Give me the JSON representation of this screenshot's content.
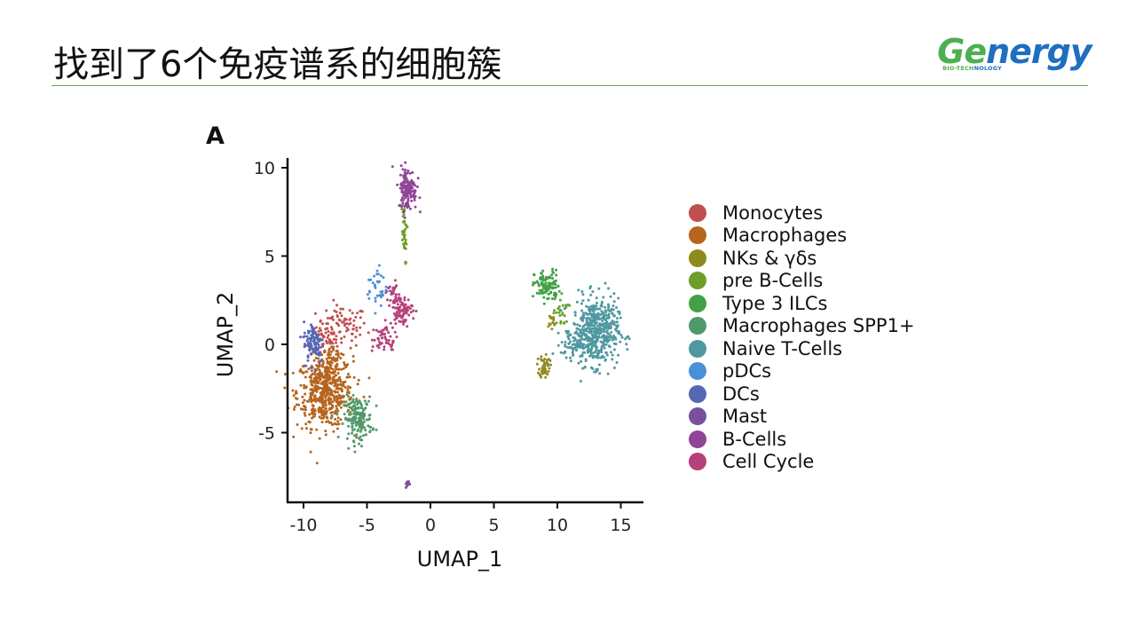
{
  "header": {
    "title": "找到了6个免疫谱系的细胞簇"
  },
  "logo": {
    "text_part1": "Ge",
    "text_part2": "nergy",
    "sub_part1": "BIO-TECH",
    "sub_part2": "NOLOGY",
    "colors": {
      "green": "#4caf50",
      "blue": "#1f6fc0"
    }
  },
  "figure": {
    "panel_letter": "A"
  },
  "chart_data": {
    "type": "scatter",
    "xlabel": "UMAP_1",
    "ylabel": "UMAP_2",
    "xlim": [
      -10.5,
      15.5
    ],
    "ylim": [
      -8.9,
      10.5
    ],
    "xticks": [
      -10,
      -5,
      0,
      5,
      10,
      15
    ],
    "yticks": [
      -5,
      0,
      5,
      10
    ],
    "xtick_labels": [
      "-10",
      "-5",
      "0",
      "5",
      "10",
      "15"
    ],
    "ytick_labels": [
      "-5",
      "0",
      "5",
      "10"
    ],
    "grid": false,
    "legend_position": "right",
    "series": [
      {
        "name": "Monocytes",
        "color": "#c0504d",
        "clusters": [
          {
            "cx": -7.0,
            "cy": 1.0,
            "sx": 1.0,
            "sy": 0.6,
            "n": 90
          },
          {
            "cx": -8.2,
            "cy": 0.2,
            "sx": 0.4,
            "sy": 0.5,
            "n": 30
          }
        ]
      },
      {
        "name": "Macrophages",
        "color": "#b5651d",
        "clusters": [
          {
            "cx": -8.3,
            "cy": -2.7,
            "sx": 1.1,
            "sy": 1.0,
            "n": 520
          },
          {
            "cx": -7.6,
            "cy": -0.9,
            "sx": 0.5,
            "sy": 0.4,
            "n": 40
          }
        ]
      },
      {
        "name": "NKs & γδs",
        "color": "#8f8a1e",
        "clusters": [
          {
            "cx": 9.0,
            "cy": -1.2,
            "sx": 0.2,
            "sy": 0.35,
            "n": 50
          },
          {
            "cx": 9.5,
            "cy": 1.2,
            "sx": 0.2,
            "sy": 0.3,
            "n": 15
          }
        ]
      },
      {
        "name": "pre B-Cells",
        "color": "#6e9e2a",
        "clusters": [
          {
            "cx": -2.1,
            "cy": 6.3,
            "sx": 0.12,
            "sy": 0.9,
            "n": 40
          },
          {
            "cx": 10.3,
            "cy": 1.8,
            "sx": 0.3,
            "sy": 0.4,
            "n": 25
          }
        ]
      },
      {
        "name": "Type 3 ILCs",
        "color": "#43a047",
        "clusters": [
          {
            "cx": 9.2,
            "cy": 3.3,
            "sx": 0.5,
            "sy": 0.45,
            "n": 110
          }
        ]
      },
      {
        "name": "Macrophages SPP1+",
        "color": "#4e9a6a",
        "clusters": [
          {
            "cx": -5.7,
            "cy": -4.2,
            "sx": 0.55,
            "sy": 0.6,
            "n": 170
          }
        ]
      },
      {
        "name": "Naive T-Cells",
        "color": "#4f98a0",
        "clusters": [
          {
            "cx": 13.0,
            "cy": 0.7,
            "sx": 0.9,
            "sy": 0.95,
            "n": 500
          },
          {
            "cx": 11.3,
            "cy": 0.0,
            "sx": 0.5,
            "sy": 0.35,
            "n": 50
          }
        ]
      },
      {
        "name": "pDCs",
        "color": "#4a90d9",
        "clusters": [
          {
            "cx": -4.2,
            "cy": 3.2,
            "sx": 0.4,
            "sy": 0.6,
            "n": 35
          }
        ]
      },
      {
        "name": "DCs",
        "color": "#5567b5",
        "clusters": [
          {
            "cx": -9.2,
            "cy": 0.1,
            "sx": 0.4,
            "sy": 0.6,
            "n": 95
          }
        ]
      },
      {
        "name": "Mast",
        "color": "#7b4fa0",
        "clusters": [
          {
            "cx": -1.8,
            "cy": -7.9,
            "sx": 0.08,
            "sy": 0.1,
            "n": 14
          }
        ]
      },
      {
        "name": "B-Cells",
        "color": "#8e4596",
        "clusters": [
          {
            "cx": -1.8,
            "cy": 8.8,
            "sx": 0.35,
            "sy": 0.6,
            "n": 130
          }
        ]
      },
      {
        "name": "Cell Cycle",
        "color": "#b5407a",
        "clusters": [
          {
            "cx": -2.3,
            "cy": 1.9,
            "sx": 0.45,
            "sy": 0.4,
            "n": 80
          },
          {
            "cx": -3.6,
            "cy": 0.3,
            "sx": 0.5,
            "sy": 0.4,
            "n": 50
          },
          {
            "cx": -2.9,
            "cy": 2.8,
            "sx": 0.25,
            "sy": 0.4,
            "n": 30
          }
        ]
      }
    ]
  }
}
